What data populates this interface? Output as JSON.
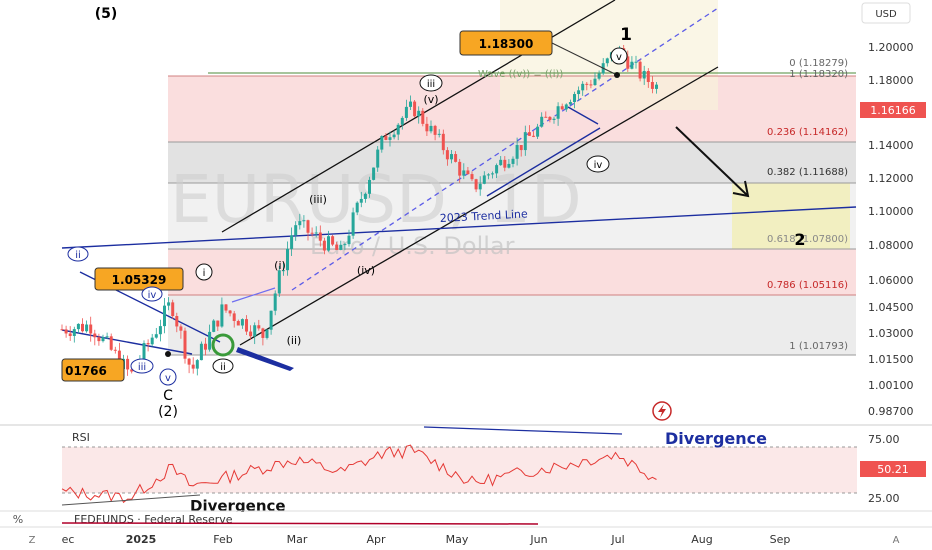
{
  "instrument": {
    "watermark_symbol": "EURUSD, 1D",
    "watermark_name": "Euro / U.S. Dollar",
    "currency": "USD",
    "last_price": "1.16166"
  },
  "price_axis": {
    "ticks": [
      "1.20000",
      "1.18000",
      "1.16000",
      "1.14000",
      "1.12000",
      "1.10000",
      "1.08000",
      "1.06000",
      "1.04500",
      "1.03000",
      "1.01500",
      "1.00100",
      "0.98700"
    ]
  },
  "time_axis": {
    "ticks": [
      "ec",
      "2025",
      "Feb",
      "Mar",
      "Apr",
      "May",
      "Jun",
      "Jul",
      "Aug",
      "Sep"
    ]
  },
  "fibonacci": [
    {
      "label": "0 (1.18279)"
    },
    {
      "label": "1 (1.18320)"
    },
    {
      "label": "0.236 (1.14162)"
    },
    {
      "label": "0.382 (1.11688)"
    },
    {
      "label": "0.618 (1.07800)"
    },
    {
      "label": "0.786 (1.05116)"
    },
    {
      "label": "1 (1.01793)"
    }
  ],
  "callouts": {
    "high": "1.18300",
    "mid": "1.05329",
    "low": "01766"
  },
  "wave_labels": {
    "top_left": "(5)",
    "wave_1": "1",
    "wave_2": "2",
    "v_top": "v",
    "iii_top": "iii",
    "v_paren": "(v)",
    "iv_circ": "iv",
    "iii_paren": "(iii)",
    "i_paren": "(i)",
    "iv_paren": "(iv)",
    "ii_paren": "(ii)",
    "i_circ": "i",
    "ii_circ": "ii",
    "ii_blue": "ii",
    "iv_blue": "iv",
    "iii_blue": "iii",
    "v_blue": "v",
    "c_label": "C",
    "two_paren": "(2)",
    "wave_eq": "Wave ((v)) = ((i))",
    "trend_line": "2023 Trend Line"
  },
  "rsi": {
    "label": "RSI",
    "value": "50.21",
    "ticks": [
      "75.00",
      "50.00",
      "25.00"
    ],
    "divergence_top": "Divergence",
    "divergence_bottom": "Divergence"
  },
  "bottom_panel": {
    "label": "FEDFUNDS · Federal Reserve",
    "percent_btn": "%",
    "z_btn": "Z",
    "a_btn": "A"
  },
  "colors": {
    "bull": "#26a69a",
    "bear": "#ef5350",
    "channel": "#000000",
    "trend": "#1c2ea0",
    "rsi": "#e53935",
    "callout": "#f7a623",
    "fedfunds": "#b0002a"
  },
  "chart_data": {
    "type": "candlestick",
    "symbol": "EURUSD",
    "timeframe": "1D",
    "yrange": [
      0.987,
      1.2
    ],
    "y_scale": "log",
    "ohlc_path": [
      [
        "2024-12-20",
        1.04
      ],
      [
        "2024-12-30",
        1.042
      ],
      [
        "2025-01-13",
        1.018
      ],
      [
        "2025-01-27",
        1.053
      ],
      [
        "2025-02-03",
        1.02
      ],
      [
        "2025-02-14",
        1.05
      ],
      [
        "2025-02-28",
        1.037
      ],
      [
        "2025-03-11",
        1.092
      ],
      [
        "2025-03-27",
        1.077
      ],
      [
        "2025-04-11",
        1.136
      ],
      [
        "2025-04-21",
        1.152
      ],
      [
        "2025-05-12",
        1.11
      ],
      [
        "2025-06-02",
        1.138
      ],
      [
        "2025-06-13",
        1.156
      ],
      [
        "2025-06-24",
        1.168
      ],
      [
        "2025-07-01",
        1.183
      ],
      [
        "2025-07-10",
        1.168
      ],
      [
        "2025-07-16",
        1.1617
      ]
    ],
    "rsi_path": [
      [
        "2024-12-20",
        40
      ],
      [
        "2025-01-13",
        35
      ],
      [
        "2025-01-27",
        62
      ],
      [
        "2025-02-03",
        45
      ],
      [
        "2025-03-11",
        70
      ],
      [
        "2025-03-27",
        58
      ],
      [
        "2025-04-11",
        76
      ],
      [
        "2025-04-21",
        78
      ],
      [
        "2025-05-12",
        48
      ],
      [
        "2025-06-02",
        60
      ],
      [
        "2025-06-13",
        65
      ],
      [
        "2025-07-01",
        75
      ],
      [
        "2025-07-16",
        50.21
      ]
    ],
    "rsi_range": [
      0,
      100
    ]
  }
}
